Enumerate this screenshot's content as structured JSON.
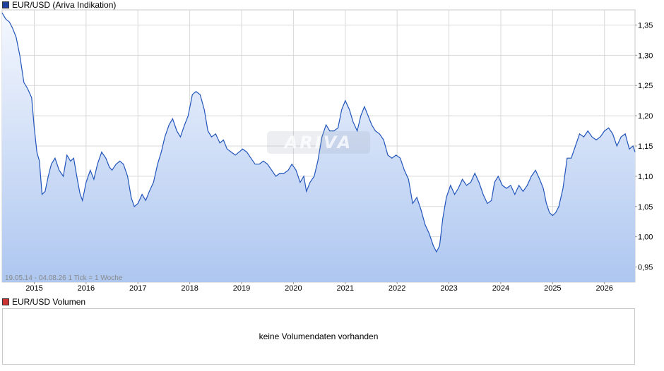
{
  "legend": {
    "price_label": "EUR/USD (Ariva Indikation)",
    "price_color": "#1f3f9f",
    "volume_label": "EUR/USD Volumen",
    "volume_color": "#cc3333"
  },
  "info_text": "19.05.14 - 04.08.26   1 Tick = 1 Woche",
  "watermark_text": "ARIVA",
  "volume_panel": {
    "message": "keine Volumendaten vorhanden"
  },
  "colors": {
    "line": "#2255bb",
    "fill_top": "#f4f7fe",
    "fill_bottom": "#aec7f0",
    "grid": "#d8d8d8"
  },
  "chart_data": {
    "type": "area",
    "title": "EUR/USD (Ariva Indikation)",
    "ylim": [
      0.925,
      1.375
    ],
    "xlim": [
      2014.38,
      2026.59
    ],
    "y_ticks": [
      0.95,
      1.0,
      1.05,
      1.1,
      1.15,
      1.2,
      1.25,
      1.3,
      1.35
    ],
    "y_tick_labels": [
      "0,95",
      "1,00",
      "1,05",
      "1,10",
      "1,15",
      "1,20",
      "1,25",
      "1,30",
      "1,35"
    ],
    "x_ticks": [
      2015,
      2016,
      2017,
      2018,
      2019,
      2020,
      2021,
      2022,
      2023,
      2024,
      2025,
      2026
    ],
    "x_tick_labels": [
      "2015",
      "2016",
      "2017",
      "2018",
      "2019",
      "2020",
      "2021",
      "2022",
      "2023",
      "2024",
      "2025",
      "2026"
    ],
    "grid": true,
    "series": [
      {
        "values": [
          [
            2014.38,
            1.37
          ],
          [
            2014.45,
            1.36
          ],
          [
            2014.52,
            1.355
          ],
          [
            2014.58,
            1.345
          ],
          [
            2014.65,
            1.33
          ],
          [
            2014.72,
            1.3
          ],
          [
            2014.8,
            1.255
          ],
          [
            2014.87,
            1.245
          ],
          [
            2014.95,
            1.23
          ],
          [
            2015.0,
            1.18
          ],
          [
            2015.05,
            1.14
          ],
          [
            2015.1,
            1.125
          ],
          [
            2015.15,
            1.07
          ],
          [
            2015.21,
            1.075
          ],
          [
            2015.27,
            1.1
          ],
          [
            2015.33,
            1.12
          ],
          [
            2015.4,
            1.13
          ],
          [
            2015.48,
            1.11
          ],
          [
            2015.56,
            1.1
          ],
          [
            2015.63,
            1.135
          ],
          [
            2015.7,
            1.125
          ],
          [
            2015.76,
            1.13
          ],
          [
            2015.82,
            1.1
          ],
          [
            2015.88,
            1.072
          ],
          [
            2015.93,
            1.06
          ],
          [
            2016.0,
            1.09
          ],
          [
            2016.08,
            1.11
          ],
          [
            2016.15,
            1.095
          ],
          [
            2016.22,
            1.12
          ],
          [
            2016.3,
            1.14
          ],
          [
            2016.38,
            1.13
          ],
          [
            2016.45,
            1.115
          ],
          [
            2016.5,
            1.11
          ],
          [
            2016.58,
            1.12
          ],
          [
            2016.65,
            1.125
          ],
          [
            2016.72,
            1.12
          ],
          [
            2016.8,
            1.1
          ],
          [
            2016.87,
            1.065
          ],
          [
            2016.93,
            1.05
          ],
          [
            2017.0,
            1.055
          ],
          [
            2017.08,
            1.07
          ],
          [
            2017.15,
            1.06
          ],
          [
            2017.22,
            1.075
          ],
          [
            2017.3,
            1.09
          ],
          [
            2017.38,
            1.12
          ],
          [
            2017.45,
            1.14
          ],
          [
            2017.52,
            1.165
          ],
          [
            2017.6,
            1.185
          ],
          [
            2017.67,
            1.195
          ],
          [
            2017.75,
            1.175
          ],
          [
            2017.82,
            1.165
          ],
          [
            2017.9,
            1.185
          ],
          [
            2017.97,
            1.2
          ],
          [
            2018.05,
            1.235
          ],
          [
            2018.12,
            1.24
          ],
          [
            2018.2,
            1.235
          ],
          [
            2018.28,
            1.21
          ],
          [
            2018.35,
            1.175
          ],
          [
            2018.42,
            1.165
          ],
          [
            2018.5,
            1.17
          ],
          [
            2018.58,
            1.155
          ],
          [
            2018.65,
            1.16
          ],
          [
            2018.72,
            1.145
          ],
          [
            2018.8,
            1.14
          ],
          [
            2018.88,
            1.135
          ],
          [
            2018.95,
            1.14
          ],
          [
            2019.02,
            1.145
          ],
          [
            2019.1,
            1.14
          ],
          [
            2019.18,
            1.13
          ],
          [
            2019.26,
            1.12
          ],
          [
            2019.34,
            1.12
          ],
          [
            2019.42,
            1.125
          ],
          [
            2019.5,
            1.12
          ],
          [
            2019.58,
            1.11
          ],
          [
            2019.66,
            1.1
          ],
          [
            2019.74,
            1.105
          ],
          [
            2019.82,
            1.105
          ],
          [
            2019.9,
            1.11
          ],
          [
            2019.97,
            1.12
          ],
          [
            2020.05,
            1.11
          ],
          [
            2020.13,
            1.09
          ],
          [
            2020.2,
            1.1
          ],
          [
            2020.25,
            1.075
          ],
          [
            2020.32,
            1.09
          ],
          [
            2020.4,
            1.1
          ],
          [
            2020.47,
            1.125
          ],
          [
            2020.55,
            1.165
          ],
          [
            2020.63,
            1.185
          ],
          [
            2020.7,
            1.175
          ],
          [
            2020.78,
            1.175
          ],
          [
            2020.86,
            1.18
          ],
          [
            2020.93,
            1.21
          ],
          [
            2021.0,
            1.225
          ],
          [
            2021.08,
            1.21
          ],
          [
            2021.15,
            1.19
          ],
          [
            2021.23,
            1.175
          ],
          [
            2021.3,
            1.2
          ],
          [
            2021.37,
            1.215
          ],
          [
            2021.44,
            1.2
          ],
          [
            2021.51,
            1.185
          ],
          [
            2021.58,
            1.175
          ],
          [
            2021.66,
            1.17
          ],
          [
            2021.74,
            1.16
          ],
          [
            2021.82,
            1.135
          ],
          [
            2021.9,
            1.13
          ],
          [
            2021.98,
            1.135
          ],
          [
            2022.06,
            1.13
          ],
          [
            2022.14,
            1.11
          ],
          [
            2022.22,
            1.095
          ],
          [
            2022.3,
            1.055
          ],
          [
            2022.38,
            1.065
          ],
          [
            2022.46,
            1.045
          ],
          [
            2022.54,
            1.02
          ],
          [
            2022.62,
            1.005
          ],
          [
            2022.7,
            0.985
          ],
          [
            2022.76,
            0.975
          ],
          [
            2022.82,
            0.985
          ],
          [
            2022.88,
            1.03
          ],
          [
            2022.95,
            1.065
          ],
          [
            2023.03,
            1.085
          ],
          [
            2023.11,
            1.07
          ],
          [
            2023.18,
            1.08
          ],
          [
            2023.26,
            1.095
          ],
          [
            2023.34,
            1.085
          ],
          [
            2023.42,
            1.09
          ],
          [
            2023.5,
            1.105
          ],
          [
            2023.58,
            1.09
          ],
          [
            2023.66,
            1.07
          ],
          [
            2023.74,
            1.055
          ],
          [
            2023.82,
            1.06
          ],
          [
            2023.88,
            1.09
          ],
          [
            2023.95,
            1.1
          ],
          [
            2024.03,
            1.085
          ],
          [
            2024.11,
            1.08
          ],
          [
            2024.19,
            1.085
          ],
          [
            2024.27,
            1.07
          ],
          [
            2024.35,
            1.085
          ],
          [
            2024.43,
            1.075
          ],
          [
            2024.51,
            1.085
          ],
          [
            2024.59,
            1.1
          ],
          [
            2024.67,
            1.11
          ],
          [
            2024.75,
            1.095
          ],
          [
            2024.82,
            1.08
          ],
          [
            2024.88,
            1.055
          ],
          [
            2024.94,
            1.04
          ],
          [
            2025.0,
            1.035
          ],
          [
            2025.06,
            1.04
          ],
          [
            2025.12,
            1.05
          ],
          [
            2025.2,
            1.08
          ],
          [
            2025.28,
            1.13
          ],
          [
            2025.36,
            1.13
          ],
          [
            2025.44,
            1.15
          ],
          [
            2025.52,
            1.17
          ],
          [
            2025.6,
            1.165
          ],
          [
            2025.68,
            1.175
          ],
          [
            2025.76,
            1.165
          ],
          [
            2025.84,
            1.16
          ],
          [
            2025.92,
            1.165
          ],
          [
            2026.0,
            1.175
          ],
          [
            2026.08,
            1.18
          ],
          [
            2026.16,
            1.17
          ],
          [
            2026.24,
            1.15
          ],
          [
            2026.32,
            1.165
          ],
          [
            2026.4,
            1.17
          ],
          [
            2026.48,
            1.145
          ],
          [
            2026.55,
            1.15
          ],
          [
            2026.59,
            1.14
          ]
        ]
      }
    ]
  }
}
